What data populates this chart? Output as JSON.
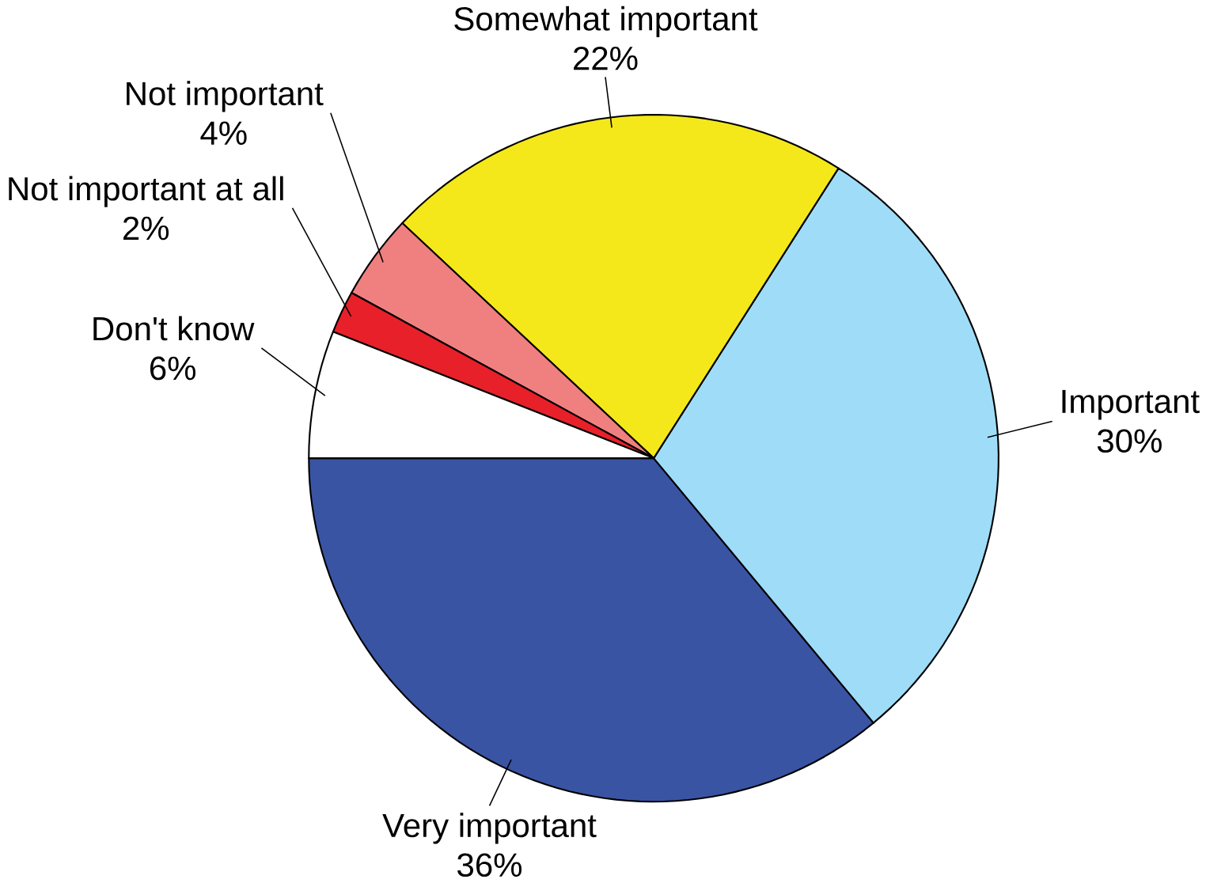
{
  "chart_data": {
    "type": "pie",
    "categories": [
      "Very important",
      "Important",
      "Somewhat important",
      "Not important",
      "Not important at all",
      "Don't know"
    ],
    "values": [
      36,
      30,
      22,
      4,
      2,
      6
    ],
    "colors": [
      "#3a54a4",
      "#9fdcf7",
      "#f5e81a",
      "#f08080",
      "#e8202a",
      "#ffffff"
    ],
    "value_labels": [
      "36%",
      "30%",
      "22%",
      "4%",
      "2%",
      "6%"
    ]
  }
}
